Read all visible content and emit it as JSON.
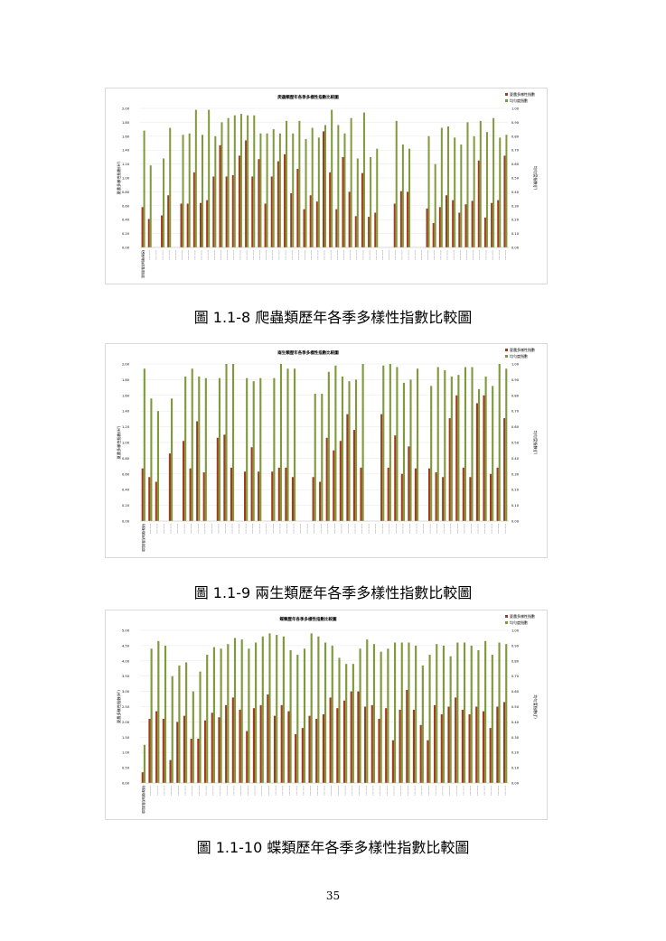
{
  "page_number": "35",
  "colors": {
    "shannon": "#a33a1c",
    "evenness": "#7f9a3a",
    "grid": "#e6e6e6"
  },
  "figures": [
    {
      "caption": "圖 1.1-8 爬蟲類歷年各季多樣性指數比較圖",
      "chart_data": {
        "type": "bar",
        "title": "爬蟲類歷年各季多樣性指數比較圖",
        "ylabel": "夏農多樣性指數(H')",
        "y2label": "均勻度指數(J')",
        "legend": [
          "夏農多樣性指數",
          "均勻度指數"
        ],
        "ylim": [
          0,
          2.0
        ],
        "yticks": [
          "0.00",
          "0.20",
          "0.40",
          "0.60",
          "0.80",
          "1.00",
          "1.20",
          "1.40",
          "1.60",
          "1.80",
          "2.00"
        ],
        "y2lim": [
          0,
          1.0
        ],
        "y2ticks": [
          "0.00",
          "0.10",
          "0.20",
          "0.30",
          "0.40",
          "0.50",
          "0.60",
          "0.70",
          "0.80",
          "0.90",
          "1.00"
        ],
        "first_category": "環境影響說明書(現況)",
        "series": [
          {
            "name": "夏農多樣性指數",
            "axis": "left",
            "values": [
              0.58,
              0.41,
              0,
              0.46,
              0.75,
              0,
              0.63,
              0.63,
              1.08,
              0.64,
              0.68,
              1.02,
              1.47,
              1.02,
              1.04,
              1.32,
              1.54,
              1.02,
              1.27,
              0.63,
              1.02,
              1.24,
              1.34,
              0.78,
              1.13,
              0.55,
              0.75,
              0.66,
              1.67,
              1.08,
              0.55,
              1.3,
              0.8,
              0.45,
              1.07,
              0.44,
              0.5,
              0,
              0,
              0.63,
              0.81,
              0.8,
              0,
              0,
              0.56,
              0.35,
              0.58,
              0.75,
              0.68,
              0.5,
              0.62,
              0.67,
              1.25,
              0.43,
              0.64,
              0.68,
              1.32
            ]
          },
          {
            "name": "均勻度指數",
            "axis": "right",
            "values": [
              0.84,
              0.59,
              0,
              0.64,
              0.86,
              0,
              0.81,
              0.82,
              0.99,
              0.81,
              0.99,
              0.8,
              0.9,
              0.93,
              0.95,
              0.96,
              0.95,
              0.95,
              0.82,
              0.82,
              0.85,
              0.82,
              0.91,
              0.82,
              0.91,
              0.78,
              0.86,
              0.79,
              0.88,
              0.99,
              0.88,
              0.82,
              0.93,
              0.64,
              0.97,
              0.65,
              0.71,
              0,
              0,
              0.91,
              0.74,
              0.71,
              0,
              0,
              0.8,
              0.6,
              0.86,
              0.87,
              0.79,
              0.74,
              0.9,
              0.8,
              0.91,
              0.83,
              0.93,
              0.79,
              0.81
            ]
          }
        ]
      }
    },
    {
      "caption": "圖 1.1-9 兩生類歷年各季多樣性指數比較圖",
      "chart_data": {
        "type": "bar",
        "title": "兩生類歷年各季多樣性指數比較圖",
        "ylabel": "夏農多樣性指數(H')",
        "y2label": "均勻度指數(J')",
        "legend": [
          "夏農多樣性指數",
          "均勻度指數"
        ],
        "ylim": [
          0,
          2.0
        ],
        "yticks": [
          "0.00",
          "0.20",
          "0.40",
          "0.60",
          "0.80",
          "1.00",
          "1.20",
          "1.40",
          "1.60",
          "1.80",
          "2.00"
        ],
        "y2lim": [
          0,
          1.0
        ],
        "y2ticks": [
          "0.00",
          "0.10",
          "0.20",
          "0.30",
          "0.40",
          "0.50",
          "0.60",
          "0.70",
          "0.80",
          "0.90",
          "1.00"
        ],
        "first_category": "環境影響說明書(現況)",
        "series": [
          {
            "name": "夏農多樣性指數",
            "axis": "left",
            "values": [
              0.67,
              0.56,
              0.5,
              0,
              0.86,
              0,
              1.02,
              0.67,
              1.27,
              0.62,
              0,
              1.06,
              1.1,
              0.68,
              0,
              0.63,
              0.94,
              0.63,
              0,
              0.63,
              0.68,
              0.68,
              0.56,
              0,
              0,
              0.56,
              0.5,
              1.06,
              0.9,
              1.02,
              1.36,
              1.16,
              0.68,
              0,
              0,
              1.36,
              0.68,
              1.09,
              0.6,
              0.95,
              0.67,
              0,
              0.67,
              0.62,
              0.56,
              1.31,
              1.6,
              0.68,
              0.56,
              1.5,
              1.6,
              0.6,
              0.68,
              1.31
            ]
          },
          {
            "name": "均勻度指數",
            "axis": "right",
            "values": [
              0.97,
              0.78,
              0.7,
              0,
              0.78,
              0,
              0.92,
              0.97,
              0.92,
              0.91,
              0,
              0.91,
              1.0,
              1.0,
              0,
              0.91,
              0.89,
              0.91,
              0,
              0.91,
              1.0,
              0.97,
              0.97,
              0,
              0,
              0.81,
              0.81,
              0.95,
              0.99,
              0.92,
              0.89,
              0.9,
              1.0,
              0,
              0,
              0.99,
              1.0,
              0.98,
              0.88,
              0.9,
              0.97,
              0,
              0.86,
              0.98,
              0.96,
              0.92,
              0.93,
              0.98,
              0.98,
              0.84,
              0.92,
              0.86,
              1.0,
              0.97
            ]
          }
        ]
      }
    },
    {
      "caption": "圖 1.1-10 蝶類歷年各季多樣性指數比較圖",
      "chart_data": {
        "type": "bar",
        "title": "蝶類歷年各季多樣性指數比較圖",
        "ylabel": "夏農多樣性指數(H')",
        "y2label": "均勻度指數(J')",
        "legend": [
          "夏農多樣性指數",
          "均勻度指數"
        ],
        "ylim": [
          0,
          5.0
        ],
        "yticks": [
          "0.00",
          "0.50",
          "1.00",
          "1.50",
          "2.00",
          "2.50",
          "3.00",
          "3.50",
          "4.00",
          "4.50",
          "5.00"
        ],
        "y2lim": [
          0,
          1.0
        ],
        "y2ticks": [
          "0.00",
          "0.10",
          "0.20",
          "0.30",
          "0.40",
          "0.50",
          "0.60",
          "0.70",
          "0.80",
          "0.90",
          "1.00"
        ],
        "first_category": "環境影響說明書(現況)",
        "series": [
          {
            "name": "夏農多樣性指數",
            "axis": "left",
            "values": [
              0.35,
              2.1,
              2.35,
              2.1,
              0.75,
              2.0,
              2.2,
              1.45,
              1.45,
              2.05,
              2.3,
              2.15,
              2.55,
              2.8,
              2.4,
              1.7,
              2.45,
              2.55,
              2.9,
              2.2,
              2.55,
              2.35,
              1.6,
              1.8,
              2.2,
              2.1,
              2.25,
              2.8,
              2.45,
              2.7,
              3.0,
              3.0,
              2.5,
              2.55,
              2.1,
              2.45,
              1.4,
              2.4,
              3.05,
              2.4,
              1.9,
              1.4,
              2.55,
              2.25,
              2.5,
              2.8,
              2.4,
              2.25,
              2.5,
              2.35,
              1.8,
              2.5,
              2.65
            ]
          },
          {
            "name": "均勻度指數",
            "axis": "right",
            "values": [
              0.25,
              0.88,
              0.93,
              0.9,
              0.7,
              0.77,
              0.79,
              0.6,
              0.73,
              0.84,
              0.89,
              0.88,
              0.91,
              0.95,
              0.94,
              0.88,
              0.92,
              0.96,
              0.98,
              0.97,
              0.96,
              0.87,
              0.84,
              0.88,
              0.98,
              0.96,
              0.92,
              0.9,
              0.82,
              0.78,
              0.78,
              0.88,
              0.94,
              0.91,
              0.86,
              0.88,
              0.92,
              0.92,
              0.92,
              0.9,
              0.77,
              0.84,
              0.91,
              0.9,
              0.83,
              0.92,
              0.92,
              0.9,
              0.87,
              0.93,
              0.84,
              0.92,
              0.91
            ]
          }
        ]
      }
    }
  ]
}
